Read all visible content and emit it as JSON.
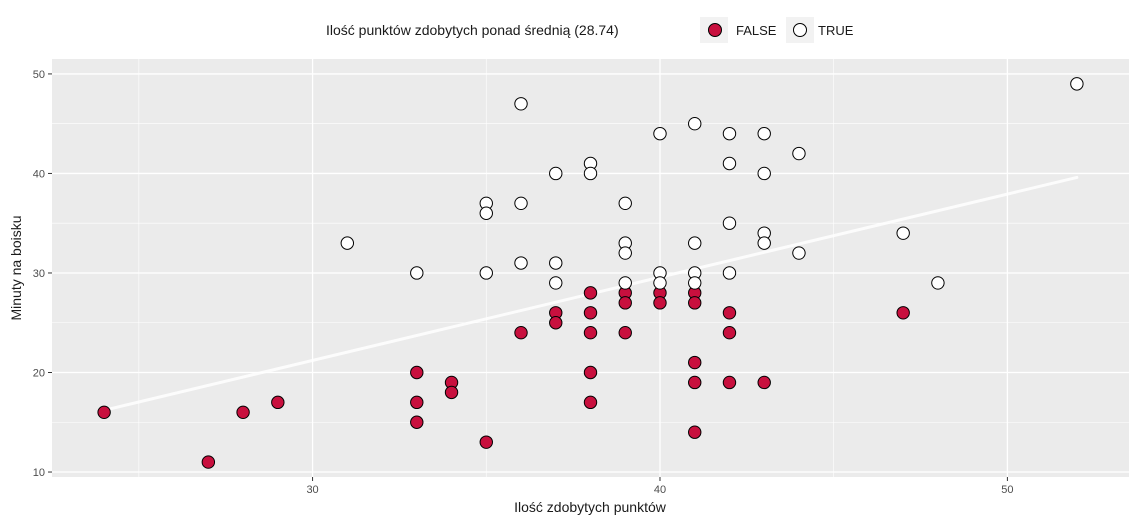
{
  "chart_data": {
    "type": "scatter",
    "xlabel": "Ilość zdobytych punktów",
    "ylabel": "Minuty na boisku",
    "xlim": [
      22.5,
      53.5
    ],
    "ylim": [
      9.5,
      51.5
    ],
    "xticks": [
      30,
      40,
      50
    ],
    "yticks": [
      10,
      20,
      30,
      40,
      50
    ],
    "grid": true,
    "legend": {
      "title": "Ilość punktów zdobytych ponad średnią (28.74)",
      "position": "top",
      "entries": [
        "FALSE",
        "TRUE"
      ]
    },
    "colors": {
      "FALSE": "#c8103e",
      "TRUE": "#ffffff",
      "stroke": "#000000",
      "panel": "#ebebeb",
      "grid": "#ffffff",
      "trend": "#ffffff"
    },
    "series": [
      {
        "name": "FALSE",
        "points": [
          [
            24,
            16
          ],
          [
            27,
            11
          ],
          [
            28,
            16
          ],
          [
            29,
            17
          ],
          [
            33,
            20
          ],
          [
            33,
            17
          ],
          [
            33,
            15
          ],
          [
            34,
            19
          ],
          [
            34,
            18
          ],
          [
            35,
            13
          ],
          [
            36,
            24
          ],
          [
            37,
            26
          ],
          [
            37,
            25
          ],
          [
            38,
            28
          ],
          [
            38,
            26
          ],
          [
            38,
            24
          ],
          [
            38,
            20
          ],
          [
            38,
            17
          ],
          [
            39,
            28
          ],
          [
            39,
            27
          ],
          [
            39,
            24
          ],
          [
            40,
            28
          ],
          [
            40,
            27
          ],
          [
            41,
            28
          ],
          [
            41,
            27
          ],
          [
            41,
            21
          ],
          [
            41,
            19
          ],
          [
            41,
            14
          ],
          [
            42,
            26
          ],
          [
            42,
            24
          ],
          [
            42,
            19
          ],
          [
            43,
            19
          ],
          [
            47,
            26
          ]
        ]
      },
      {
        "name": "TRUE",
        "points": [
          [
            31,
            33
          ],
          [
            33,
            30
          ],
          [
            35,
            37
          ],
          [
            35,
            36
          ],
          [
            35,
            30
          ],
          [
            36,
            47
          ],
          [
            36,
            37
          ],
          [
            36,
            31
          ],
          [
            37,
            40
          ],
          [
            37,
            31
          ],
          [
            37,
            29
          ],
          [
            38,
            41
          ],
          [
            38,
            40
          ],
          [
            39,
            37
          ],
          [
            39,
            33
          ],
          [
            39,
            32
          ],
          [
            39,
            29
          ],
          [
            40,
            44
          ],
          [
            40,
            30
          ],
          [
            40,
            29
          ],
          [
            41,
            45
          ],
          [
            41,
            33
          ],
          [
            41,
            30
          ],
          [
            41,
            29
          ],
          [
            42,
            44
          ],
          [
            42,
            41
          ],
          [
            42,
            35
          ],
          [
            42,
            30
          ],
          [
            43,
            44
          ],
          [
            43,
            40
          ],
          [
            43,
            34
          ],
          [
            43,
            33
          ],
          [
            44,
            42
          ],
          [
            44,
            32
          ],
          [
            47,
            34
          ],
          [
            48,
            29
          ],
          [
            52,
            49
          ]
        ]
      }
    ],
    "trend_line": {
      "x": [
        24,
        52
      ],
      "y": [
        16.2,
        39.6
      ]
    }
  }
}
